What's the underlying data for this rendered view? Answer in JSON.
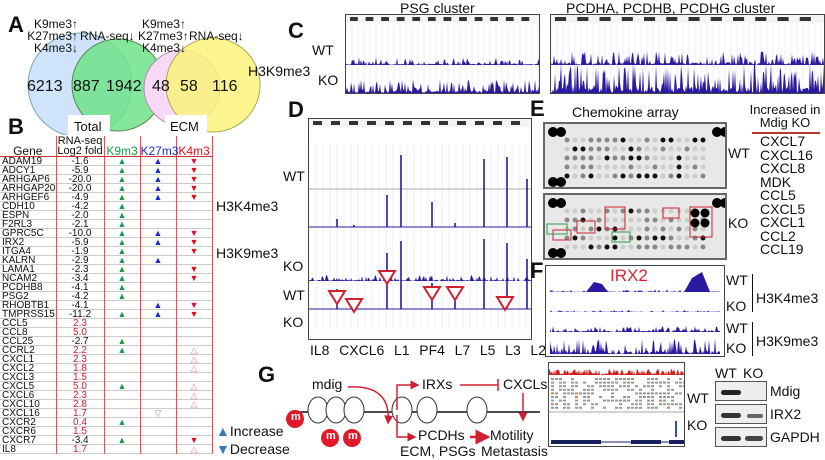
{
  "panels": {
    "a": "A",
    "b": "B",
    "c": "C",
    "d": "D",
    "e": "E",
    "f": "F",
    "g": "G"
  },
  "venn": {
    "criteria": [
      "K9me3↑",
      "K27me3↑",
      "K4me3↓"
    ],
    "rna": "RNA-seq↓",
    "total": {
      "left": "6213",
      "overlap": "887",
      "right": "1942",
      "label": "Total"
    },
    "ecm": {
      "left": "48",
      "overlap": "58",
      "right": "116",
      "label": "ECM"
    },
    "mark": "H3K9me3",
    "colors": {
      "blue": "#cfe3fb",
      "green": "#6fe38a",
      "pink": "#f7d9f5",
      "yellow": "#fbf27a"
    }
  },
  "table": {
    "headers": [
      "Gene",
      "RNA-seq Log2 fold",
      "K9m3",
      "K27m3",
      "K4m3"
    ],
    "rows": [
      [
        "ADAM19",
        "-1.6",
        "up",
        "up",
        "down"
      ],
      [
        "ADCY1",
        "-5.9",
        "up",
        "up",
        "down"
      ],
      [
        "ARHGAP6",
        "-20.0",
        "up",
        "up",
        "down"
      ],
      [
        "ARHGAP20",
        "-20.0",
        "up",
        "up",
        "down"
      ],
      [
        "ARHGEF6",
        "-4.9",
        "up",
        "up",
        "down"
      ],
      [
        "CDH10",
        "-4.2",
        "up",
        "",
        ""
      ],
      [
        "ESPN",
        "-2.0",
        "up",
        "",
        ""
      ],
      [
        "F2RL3",
        "-2.1",
        "up",
        "",
        ""
      ],
      [
        "GPRC5C",
        "-10.0",
        "up",
        "up",
        "down"
      ],
      [
        "IRX2",
        "-5.9",
        "up",
        "up",
        "down"
      ],
      [
        "ITGA4",
        "-1.9",
        "up",
        "",
        "down"
      ],
      [
        "KALRN",
        "-2.9",
        "up",
        "up",
        ""
      ],
      [
        "LAMA1",
        "-2.3",
        "up",
        "",
        "down"
      ],
      [
        "NCAM2",
        "-3.4",
        "up",
        "",
        "down"
      ],
      [
        "PCDHB8",
        "-4.1",
        "up",
        "",
        ""
      ],
      [
        "PSG2",
        "-4.2",
        "up",
        "",
        ""
      ],
      [
        "RHOBTB1",
        "-4.1",
        "",
        "up",
        "down"
      ],
      [
        "TMPRSS15",
        "-11.2",
        "up",
        "up",
        "down"
      ],
      [
        "CCL5",
        "2.3",
        "",
        "",
        ""
      ],
      [
        "CCL8",
        "5.0",
        "",
        "",
        ""
      ],
      [
        "CCL25",
        "-2.7",
        "up",
        "",
        ""
      ],
      [
        "CCRL2",
        "2.2",
        "up",
        "",
        "open-up"
      ],
      [
        "CXCL1",
        "2.3",
        "",
        "",
        "open-up"
      ],
      [
        "CXCL2",
        "1.8",
        "",
        "",
        "open-up"
      ],
      [
        "CXCL3",
        "1.5",
        "",
        "",
        ""
      ],
      [
        "CXCL5",
        "5.0",
        "up",
        "",
        "open-up"
      ],
      [
        "CXCL6",
        "2.3",
        "",
        "",
        "open-up"
      ],
      [
        "CXCL10",
        "2.8",
        "",
        "",
        "open-up"
      ],
      [
        "CXCL16",
        "1.7",
        "",
        "open-down",
        ""
      ],
      [
        "CXCR2",
        "0.4",
        "up",
        "",
        ""
      ],
      [
        "CXCR6",
        "1.5",
        "",
        "",
        ""
      ],
      [
        "CXCR7",
        "-3.4",
        "up",
        "",
        "down"
      ],
      [
        "IL8",
        "1.7",
        "",
        "",
        "open-up"
      ]
    ],
    "side_labels": {
      "k4": "H3K4me3",
      "k9": "H3K9me3"
    },
    "legend": {
      "increase": "Increase",
      "decrease": "Decrease"
    }
  },
  "c": {
    "titles": [
      "PSG cluster",
      "PCDHA, PCDHB, PCDHG cluster"
    ],
    "wt": "WT",
    "ko": "KO"
  },
  "d": {
    "wt": "WT",
    "ko": "KO",
    "genes": [
      "IL8",
      "CXCL6",
      "L1",
      "PF4",
      "L7",
      "L5",
      "L3",
      "L2"
    ]
  },
  "e": {
    "title": "Chemokine array",
    "wt": "WT",
    "ko": "KO",
    "list_title": "Increased in Mdig KO",
    "list": [
      "CXCL7",
      "CXCL16",
      "CXCL8",
      "MDK",
      "CCL5",
      "CXCL5",
      "CXCL1",
      "CCL2",
      "CCL19"
    ]
  },
  "f": {
    "gene": "IRX2",
    "wt": "WT",
    "ko": "KO",
    "k4": "H3K4me3",
    "k9": "H3K9me3"
  },
  "g": {
    "mdig": "mdig",
    "irxs": "IRXs",
    "cxcls": "CXCLs",
    "pcdhs": "PCDHs",
    "ecm": "ECM, PSGs",
    "motility": "Motility",
    "metastasis": "Metastasis",
    "m": "m"
  },
  "igv": {
    "wt": "WT",
    "ko": "KO"
  },
  "blot": {
    "wt": "WT",
    "ko": "KO",
    "rows": [
      "Mdig",
      "IRX2",
      "GAPDH"
    ]
  }
}
